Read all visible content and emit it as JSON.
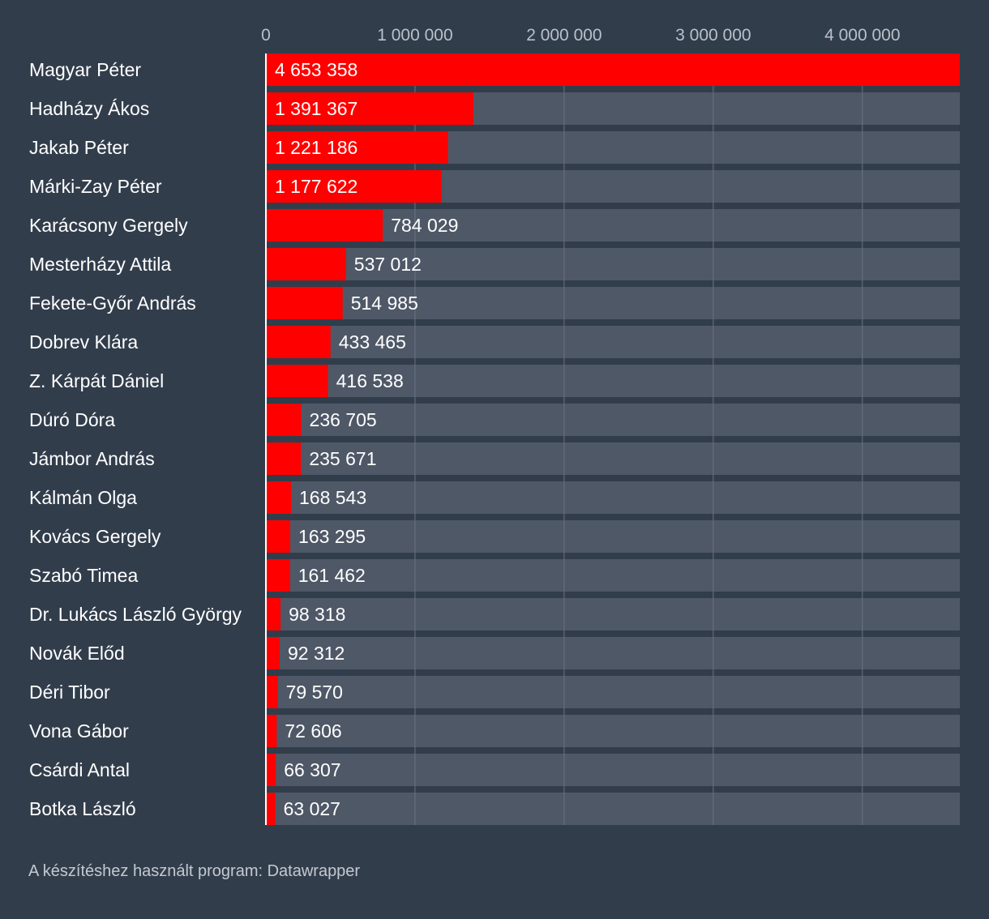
{
  "colors": {
    "background": "#323d4c",
    "bar": "#ff0000",
    "track": "#4f5867",
    "grid": "#687283",
    "text": "#ffffff",
    "tick_text": "#b9c0ca",
    "axis_line": "#ffffff"
  },
  "footer": "A készítéshez használt program: Datawrapper",
  "chart_data": {
    "type": "bar",
    "orientation": "horizontal",
    "title": "",
    "xlabel": "",
    "ylabel": "",
    "xlim": [
      0,
      4653358
    ],
    "x_ticks": [
      0,
      1000000,
      2000000,
      3000000,
      4000000
    ],
    "x_tick_labels": [
      "0",
      "1 000 000",
      "2 000 000",
      "3 000 000",
      "4 000 000"
    ],
    "grid": true,
    "categories": [
      "Magyar Péter",
      "Hadházy Ákos",
      "Jakab Péter",
      "Márki-Zay Péter",
      "Karácsony Gergely",
      "Mesterházy Attila",
      "Fekete-Győr András",
      "Dobrev Klára",
      "Z. Kárpát Dániel",
      "Dúró Dóra",
      "Jámbor András",
      "Kálmán Olga",
      "Kovács Gergely",
      "Szabó Timea",
      "Dr. Lukács László György",
      "Novák Előd",
      "Déri Tibor",
      "Vona Gábor",
      "Csárdi Antal",
      "Botka László"
    ],
    "values": [
      4653358,
      1391367,
      1221186,
      1177622,
      784029,
      537012,
      514985,
      433465,
      416538,
      236705,
      235671,
      168543,
      163295,
      161462,
      98318,
      92312,
      79570,
      72606,
      66307,
      63027
    ],
    "value_labels": [
      "4 653 358",
      "1 391 367",
      "1 221 186",
      "1 177 622",
      "784 029",
      "537 012",
      "514 985",
      "433 465",
      "416 538",
      "236 705",
      "235 671",
      "168 543",
      "163 295",
      "161 462",
      "98 318",
      "92 312",
      "79 570",
      "72 606",
      "66 307",
      "63 027"
    ]
  }
}
